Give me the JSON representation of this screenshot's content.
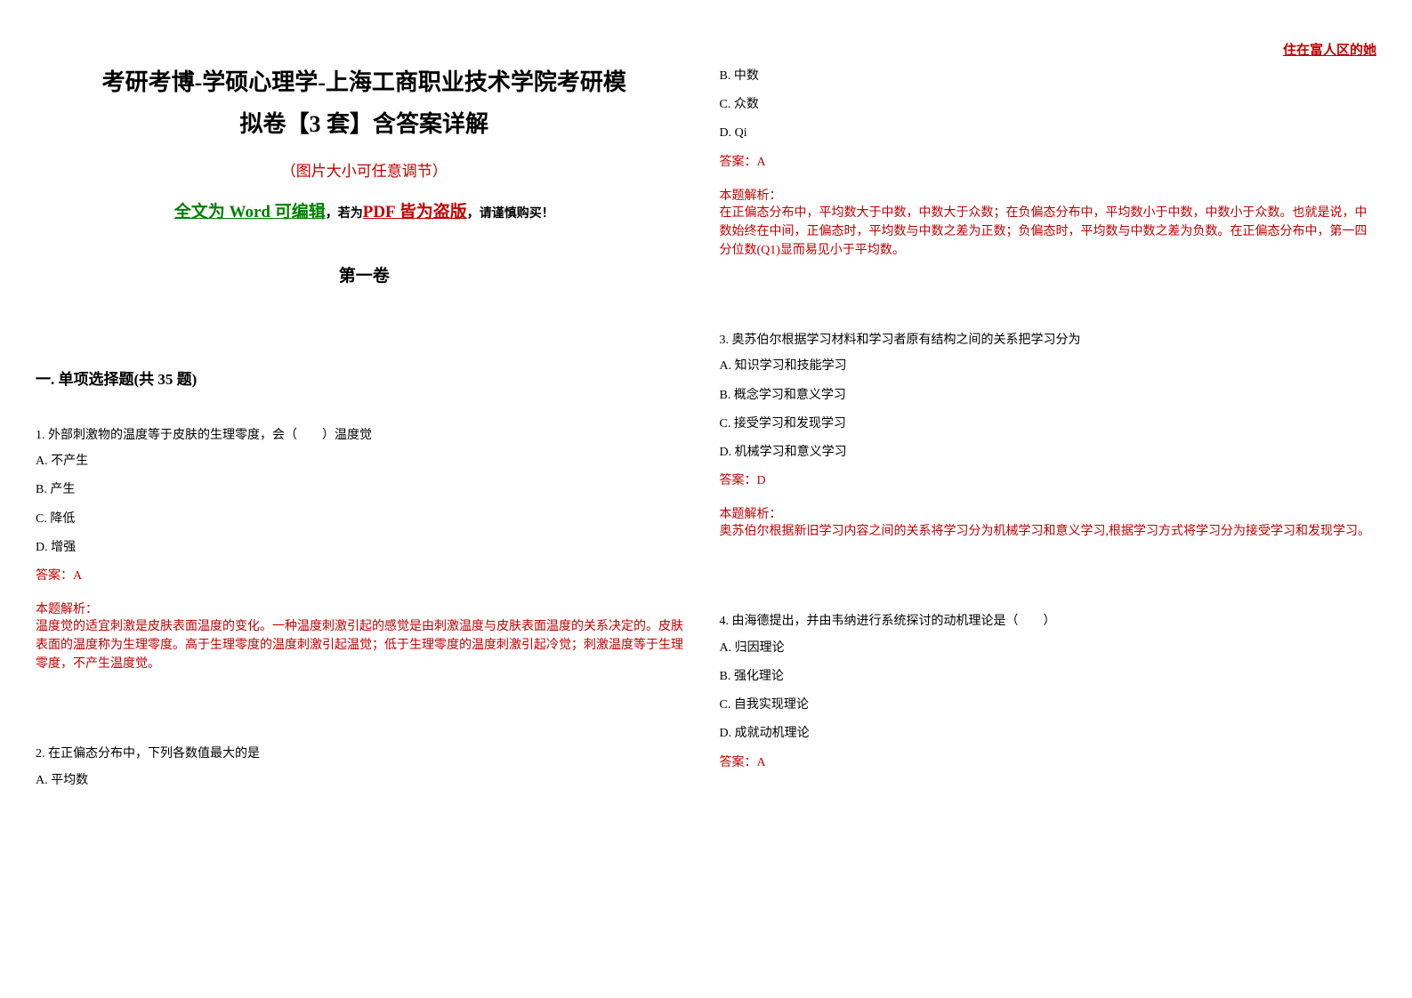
{
  "header_note": "住在富人区的她",
  "title_line1": "考研考博-学硕心理学-上海工商职业技术学院考研模",
  "title_line2": "拟卷【3 套】含答案详解",
  "subtitle": "（图片大小可任意调节）",
  "word_notice_green": "全文为 Word 可编辑",
  "word_notice_mid": "，若为",
  "word_notice_red": "PDF 皆为盗版",
  "word_notice_end": "，请谨慎购买！",
  "volume": "第一卷",
  "section_title": "一. 单项选择题(共 35 题)",
  "q1": {
    "text": "1. 外部刺激物的温度等于皮肤的生理零度，会（　　）温度觉",
    "options": [
      "A. 不产生",
      "B. 产生",
      "C. 降低",
      "D. 增强"
    ],
    "answer": "答案：A",
    "analysis_label": "本题解析：",
    "analysis": "温度觉的适宜刺激是皮肤表面温度的变化。一种温度刺激引起的感觉是由刺激温度与皮肤表面温度的关系决定的。皮肤表面的温度称为生理零度。高于生理零度的温度刺激引起温觉；低于生理零度的温度刺激引起冷觉；刺激温度等于生理零度，不产生温度觉。"
  },
  "q2": {
    "text": "2. 在正偏态分布中，下列各数值最大的是",
    "option_a": "A. 平均数",
    "option_b": "B. 中数",
    "option_c": "C. 众数",
    "option_d": "D. Qi",
    "answer": "答案：A",
    "analysis_label": "本题解析：",
    "analysis": "在正偏态分布中，平均数大于中数，中数大于众数；在负偏态分布中，平均数小于中数，中数小于众数。也就是说，中数始终在中间，正偏态时，平均数与中数之差为正数；负偏态时，平均数与中数之差为负数。在正偏态分布中，第一四分位数(Q1)显而易见小于平均数。"
  },
  "q3": {
    "text": "3. 奥苏伯尔根据学习材料和学习者原有结构之间的关系把学习分为",
    "options": [
      "A. 知识学习和技能学习",
      "B. 概念学习和意义学习",
      "C. 接受学习和发现学习",
      "D. 机械学习和意义学习"
    ],
    "answer": "答案：D",
    "analysis_label": "本题解析：",
    "analysis": "奥苏伯尔根据新旧学习内容之间的关系将学习分为机械学习和意义学习,根据学习方式将学习分为接受学习和发现学习。"
  },
  "q4": {
    "text": "4. 由海德提出，并由韦纳进行系统探讨的动机理论是（　　）",
    "options": [
      "A. 归因理论",
      "B. 强化理论",
      "C. 自我实现理论",
      "D. 成就动机理论"
    ],
    "answer": "答案：A"
  },
  "colors": {
    "red": "#c00000",
    "green": "#008000",
    "black": "#000000",
    "background": "#ffffff"
  },
  "fonts": {
    "title_size": 26,
    "body_size": 14,
    "section_size": 17
  }
}
